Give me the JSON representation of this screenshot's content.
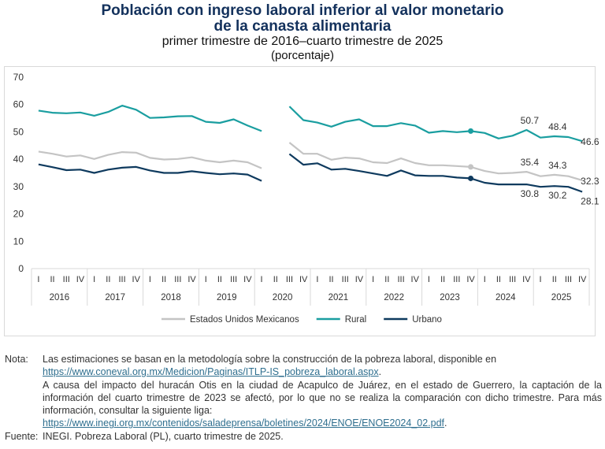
{
  "title_line1": "Población con ingreso laboral inferior al valor monetario",
  "title_line2": "de la canasta alimentaria",
  "subtitle": "primer trimestre de 2016–cuarto trimestre de 2025",
  "unit": "(porcentaje)",
  "chart_data": {
    "type": "line",
    "ylim": [
      0,
      70
    ],
    "yticks": [
      "0",
      "10",
      "20",
      "30",
      "40",
      "50",
      "60",
      "70"
    ],
    "grid": false,
    "legend_position": "bottom",
    "years": [
      "2016",
      "2017",
      "2018",
      "2019",
      "2020",
      "2021",
      "2022",
      "2023",
      "2024",
      "2025"
    ],
    "quarters": [
      "I",
      "II",
      "III",
      "IV"
    ],
    "highlight_point": "2023 IV",
    "series": [
      {
        "name": "Estados Unidos Mexicanos",
        "color": "#c4c4c4",
        "values": [
          42.8,
          42.0,
          41.0,
          41.4,
          40.1,
          41.6,
          42.6,
          42.4,
          40.5,
          39.9,
          40.1,
          40.7,
          39.5,
          38.9,
          39.5,
          38.9,
          36.7,
          null,
          46.1,
          42.0,
          42.0,
          39.8,
          40.6,
          40.3,
          38.9,
          38.6,
          40.3,
          38.6,
          37.8,
          37.8,
          37.5,
          37.2,
          35.7,
          34.8,
          35.0,
          35.4,
          33.8,
          34.3,
          33.8,
          32.3
        ],
        "labels": [
          {
            "quarter_index": 35,
            "text": "35.4"
          },
          {
            "quarter_index": 37,
            "text": "34.3"
          },
          {
            "quarter_index": 39,
            "text": "32.3"
          }
        ]
      },
      {
        "name": "Rural",
        "color": "#1a9ea0",
        "values": [
          57.8,
          57.0,
          56.8,
          57.1,
          55.9,
          57.3,
          59.6,
          58.1,
          55.1,
          55.3,
          55.7,
          55.8,
          53.7,
          53.3,
          54.6,
          52.3,
          50.3,
          null,
          59.3,
          54.3,
          53.4,
          51.9,
          53.7,
          54.6,
          52.1,
          52.1,
          53.2,
          52.3,
          49.7,
          50.3,
          49.9,
          50.3,
          49.6,
          47.6,
          48.6,
          50.7,
          47.9,
          48.4,
          48.1,
          46.6
        ],
        "labels": [
          {
            "quarter_index": 35,
            "text": "50.7"
          },
          {
            "quarter_index": 37,
            "text": "48.4"
          },
          {
            "quarter_index": 39,
            "text": "46.6"
          }
        ]
      },
      {
        "name": "Urbano",
        "color": "#0e3a5e",
        "values": [
          38.1,
          37.1,
          36.0,
          36.2,
          35.0,
          36.2,
          36.9,
          37.2,
          35.9,
          35.0,
          35.0,
          35.6,
          35.0,
          34.5,
          34.8,
          34.4,
          32.1,
          null,
          41.9,
          38.0,
          38.5,
          36.2,
          36.5,
          35.7,
          34.8,
          33.9,
          35.9,
          34.1,
          33.9,
          33.9,
          33.3,
          33.0,
          31.4,
          30.8,
          30.8,
          30.8,
          29.9,
          30.2,
          29.9,
          28.1
        ],
        "labels": [
          {
            "quarter_index": 35,
            "text": "30.8"
          },
          {
            "quarter_index": 37,
            "text": "30.2"
          },
          {
            "quarter_index": 39,
            "text": "28.1"
          }
        ]
      }
    ]
  },
  "notes": {
    "nota_label": "Nota:",
    "nota_text1": "Las estimaciones se basan en la metodología sobre la construcción de la pobreza laboral, disponible en",
    "nota_link1": "https://www.coneval.org.mx/Medicion/Paginas/ITLP-IS_pobreza_laboral.aspx",
    "nota_text2": "A causa del impacto del huracán Otis en la ciudad de Acapulco de Juárez, en el estado de Guerrero, la captación de la información del cuarto trimestre de 2023 se afectó, por lo que no se realiza la comparación con dicho trimestre. Para más información, consultar la siguiente liga:",
    "nota_link2": "https://www.inegi.org.mx/contenidos/saladeprensa/boletines/2024/ENOE/ENOE2024_02.pdf",
    "fuente_label": "Fuente:",
    "fuente_text": "INEGI. Pobreza Laboral (PL), cuarto trimestre de 2025."
  }
}
